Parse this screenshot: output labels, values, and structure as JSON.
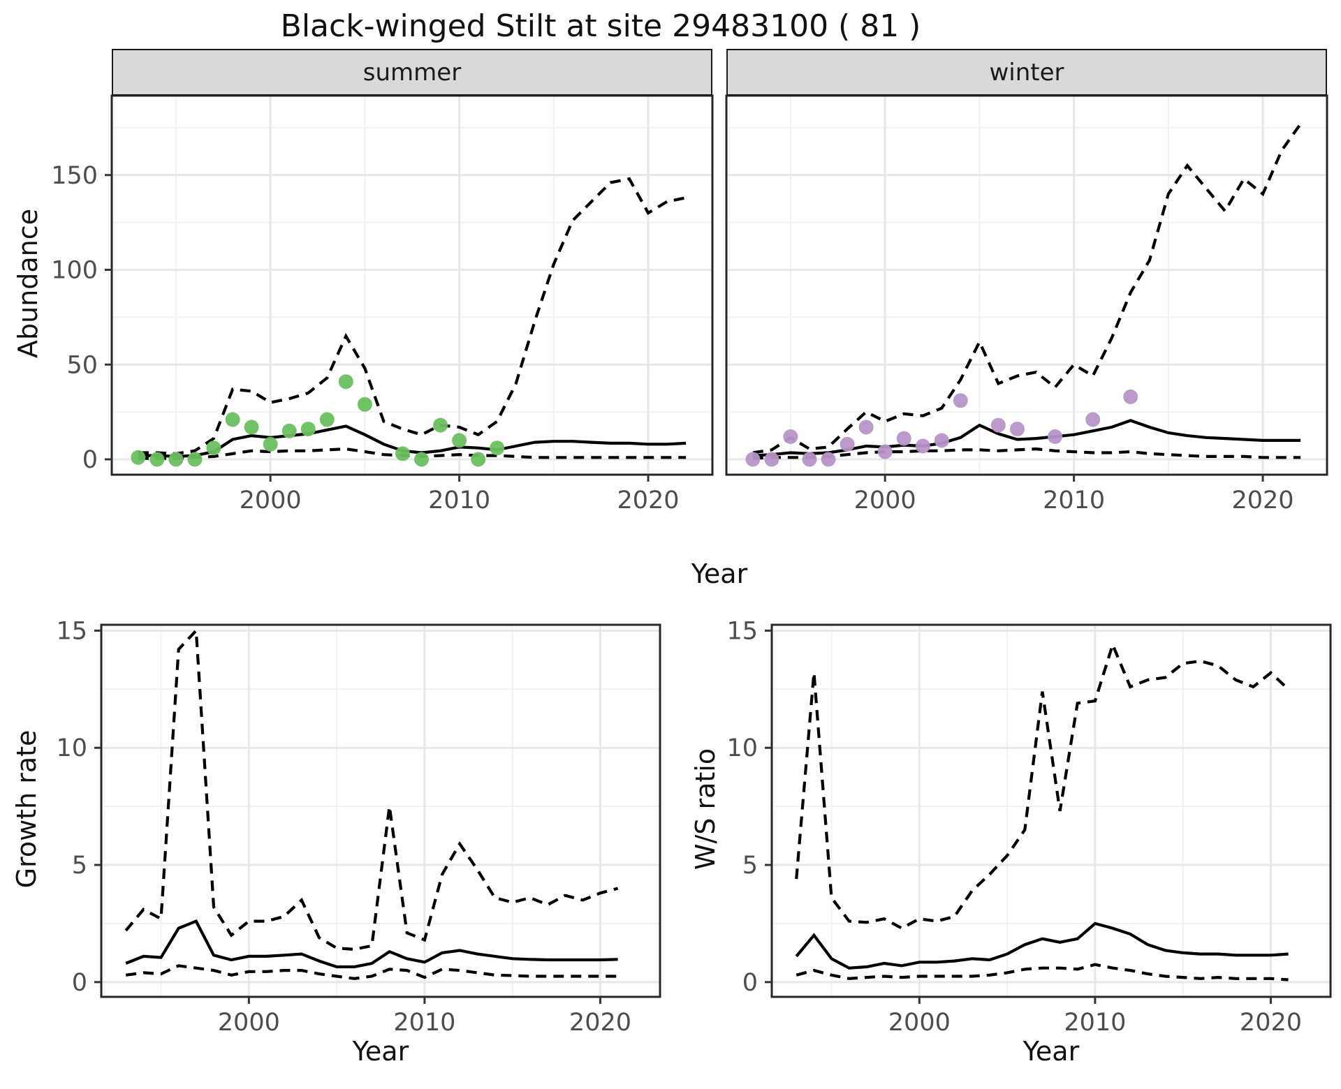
{
  "title": "Black-winged Stilt at site 29483100 ( 81 )",
  "facets": {
    "summer": "summer",
    "winter": "winter"
  },
  "axis_titles": {
    "abundance": "Abundance",
    "year_top": "Year",
    "growth": "Growth rate",
    "year_growth": "Year",
    "ws": "W/S ratio",
    "year_ws": "Year"
  },
  "colors": {
    "summer_points": "#6abf5f",
    "winter_points": "#b795c8",
    "line": "#000000",
    "strip_fill": "#d9d9d9",
    "panel_border": "#262626",
    "grid_major": "#e8e8e8",
    "grid_minor": "#f2f2f2",
    "tick_text": "#4d4d4d"
  },
  "chart_data": [
    {
      "id": "abundance-summer",
      "type": "line",
      "facet": "summer",
      "xlabel": "Year",
      "ylabel": "Abundance",
      "xlim": [
        1991.6,
        2023.4
      ],
      "ylim": [
        -8.1,
        191.9
      ],
      "xticks": [
        2000,
        2010,
        2020
      ],
      "xminor": [
        1995,
        2005,
        2015
      ],
      "yticks": [
        0,
        50,
        100,
        150
      ],
      "yminor": [
        25,
        75,
        125,
        175
      ],
      "years": [
        1993,
        1994,
        1995,
        1996,
        1997,
        1998,
        1999,
        2000,
        2001,
        2002,
        2003,
        2004,
        2005,
        2006,
        2007,
        2008,
        2009,
        2010,
        2011,
        2012,
        2013,
        2014,
        2015,
        2016,
        2017,
        2018,
        2019,
        2020,
        2021,
        2022
      ],
      "series": [
        {
          "name": "fit",
          "style": "solid",
          "values": [
            2,
            2,
            1.5,
            2,
            4,
            10.5,
            12.5,
            11.5,
            12.5,
            13.5,
            15.5,
            17.5,
            13,
            8,
            4.5,
            3.5,
            4.5,
            6.5,
            6,
            5,
            7,
            9,
            9.5,
            9.5,
            9,
            8.5,
            8.5,
            8,
            8,
            8.5
          ]
        },
        {
          "name": "ci-upper",
          "style": "dashed",
          "values": [
            3.5,
            3.5,
            3,
            4.5,
            11,
            37,
            36,
            30,
            32,
            35,
            43,
            65,
            48,
            20,
            16,
            13,
            18,
            17,
            13,
            20,
            40,
            73,
            103,
            126,
            136,
            146,
            148,
            130,
            136,
            138
          ]
        },
        {
          "name": "ci-lower",
          "style": "dashed",
          "values": [
            0.5,
            0.5,
            0.5,
            1,
            1.5,
            3,
            4.5,
            4,
            4.5,
            4.5,
            5,
            5.5,
            4,
            2.5,
            2,
            1.5,
            2,
            2.5,
            2,
            2,
            1.5,
            1,
            1,
            1,
            1,
            1,
            1,
            1,
            1,
            1
          ]
        }
      ],
      "observations": {
        "name": "summer-counts",
        "color": "#6abf5f",
        "points": [
          [
            1993,
            1
          ],
          [
            1994,
            0
          ],
          [
            1995,
            0
          ],
          [
            1996,
            0
          ],
          [
            1997,
            6
          ],
          [
            1998,
            21
          ],
          [
            1999,
            17
          ],
          [
            2000,
            8
          ],
          [
            2001,
            15
          ],
          [
            2002,
            16
          ],
          [
            2003,
            21
          ],
          [
            2004,
            41
          ],
          [
            2005,
            29
          ],
          [
            2007,
            3
          ],
          [
            2008,
            0
          ],
          [
            2009,
            18
          ],
          [
            2010,
            10
          ],
          [
            2011,
            0
          ],
          [
            2012,
            6
          ]
        ]
      }
    },
    {
      "id": "abundance-winter",
      "type": "line",
      "facet": "winter",
      "xlabel": "Year",
      "ylabel": "Abundance",
      "xlim": [
        1991.6,
        2023.4
      ],
      "ylim": [
        -8.1,
        191.9
      ],
      "xticks": [
        2000,
        2010,
        2020
      ],
      "xminor": [
        1995,
        2005,
        2015
      ],
      "yticks": [
        0,
        50,
        100,
        150
      ],
      "yminor": [
        25,
        75,
        125,
        175
      ],
      "years": [
        1993,
        1994,
        1995,
        1996,
        1997,
        1998,
        1999,
        2000,
        2001,
        2002,
        2003,
        2004,
        2005,
        2006,
        2007,
        2008,
        2009,
        2010,
        2011,
        2012,
        2013,
        2014,
        2015,
        2016,
        2017,
        2018,
        2019,
        2020,
        2021,
        2022
      ],
      "series": [
        {
          "name": "fit",
          "style": "solid",
          "values": [
            2,
            2.5,
            3.5,
            3,
            3.5,
            5,
            7,
            6.5,
            7.5,
            7,
            8.5,
            11.5,
            18,
            13.5,
            10.5,
            11,
            12,
            13,
            15,
            17,
            20.5,
            17,
            14,
            12.5,
            11.5,
            11,
            10.5,
            10,
            10,
            10
          ]
        },
        {
          "name": "ci-upper",
          "style": "dashed",
          "values": [
            3.5,
            5,
            11.5,
            5.5,
            6.5,
            16,
            25,
            20,
            24,
            23,
            27,
            42,
            62,
            40,
            44,
            46,
            38,
            50,
            44,
            64,
            88,
            105,
            140,
            155,
            143,
            131,
            148,
            140,
            163,
            177
          ]
        },
        {
          "name": "ci-lower",
          "style": "dashed",
          "values": [
            0.5,
            1,
            1,
            1,
            1.5,
            2.5,
            3.5,
            4,
            4,
            4.5,
            4.5,
            5,
            5,
            4.5,
            5,
            5.5,
            4.5,
            4,
            3.5,
            3.5,
            4,
            3,
            2.5,
            2,
            1.5,
            1.5,
            1.5,
            1,
            1,
            1
          ]
        }
      ],
      "observations": {
        "name": "winter-counts",
        "color": "#b795c8",
        "points": [
          [
            1993,
            0
          ],
          [
            1994,
            0
          ],
          [
            1995,
            12
          ],
          [
            1996,
            0
          ],
          [
            1997,
            0
          ],
          [
            1998,
            8
          ],
          [
            1999,
            17
          ],
          [
            2000,
            4
          ],
          [
            2001,
            11
          ],
          [
            2002,
            7
          ],
          [
            2003,
            10
          ],
          [
            2004,
            31
          ],
          [
            2006,
            18
          ],
          [
            2007,
            16
          ],
          [
            2009,
            12
          ],
          [
            2011,
            21
          ],
          [
            2013,
            33
          ]
        ]
      }
    },
    {
      "id": "growth-rate",
      "type": "line",
      "facet": null,
      "xlabel": "Year",
      "ylabel": "Growth rate",
      "xlim": [
        1991.6,
        2023.4
      ],
      "ylim": [
        -0.63,
        15.25
      ],
      "xticks": [
        2000,
        2010,
        2020
      ],
      "xminor": [
        1995,
        2005,
        2015
      ],
      "yticks": [
        0,
        5,
        10,
        15
      ],
      "yminor": [
        2.5,
        7.5,
        12.5
      ],
      "years": [
        1993,
        1994,
        1995,
        1996,
        1997,
        1998,
        1999,
        2000,
        2001,
        2002,
        2003,
        2004,
        2005,
        2006,
        2007,
        2008,
        2009,
        2010,
        2011,
        2012,
        2013,
        2014,
        2015,
        2016,
        2017,
        2018,
        2019,
        2020,
        2021
      ],
      "series": [
        {
          "name": "fit",
          "style": "solid",
          "values": [
            0.8,
            1.1,
            1.05,
            2.3,
            2.6,
            1.15,
            0.95,
            1.1,
            1.1,
            1.15,
            1.2,
            0.9,
            0.65,
            0.65,
            0.8,
            1.3,
            1.0,
            0.85,
            1.25,
            1.35,
            1.2,
            1.1,
            1.0,
            0.97,
            0.95,
            0.95,
            0.95,
            0.95,
            0.97
          ]
        },
        {
          "name": "ci-upper",
          "style": "dashed",
          "values": [
            2.2,
            3.1,
            2.7,
            14.2,
            15.0,
            3.2,
            2.0,
            2.6,
            2.6,
            2.8,
            3.5,
            1.9,
            1.45,
            1.4,
            1.55,
            7.5,
            2.1,
            1.8,
            4.6,
            5.9,
            4.8,
            3.6,
            3.4,
            3.6,
            3.3,
            3.7,
            3.5,
            3.8,
            4.0
          ]
        },
        {
          "name": "ci-lower",
          "style": "dashed",
          "values": [
            0.3,
            0.4,
            0.35,
            0.7,
            0.6,
            0.5,
            0.3,
            0.45,
            0.45,
            0.5,
            0.5,
            0.35,
            0.25,
            0.15,
            0.25,
            0.55,
            0.5,
            0.2,
            0.55,
            0.5,
            0.4,
            0.3,
            0.28,
            0.25,
            0.25,
            0.25,
            0.25,
            0.25,
            0.25
          ]
        }
      ],
      "observations": null
    },
    {
      "id": "ws-ratio",
      "type": "line",
      "facet": null,
      "xlabel": "Year",
      "ylabel": "W/S ratio",
      "xlim": [
        1991.6,
        2023.4
      ],
      "ylim": [
        -0.63,
        15.25
      ],
      "xticks": [
        2000,
        2010,
        2020
      ],
      "xminor": [
        1995,
        2005,
        2015
      ],
      "yticks": [
        0,
        5,
        10,
        15
      ],
      "yminor": [
        2.5,
        7.5,
        12.5
      ],
      "years": [
        1993,
        1994,
        1995,
        1996,
        1997,
        1998,
        1999,
        2000,
        2001,
        2002,
        2003,
        2004,
        2005,
        2006,
        2007,
        2008,
        2009,
        2010,
        2011,
        2012,
        2013,
        2014,
        2015,
        2016,
        2017,
        2018,
        2019,
        2020,
        2021
      ],
      "series": [
        {
          "name": "fit",
          "style": "solid",
          "values": [
            1.1,
            2.0,
            1.0,
            0.6,
            0.65,
            0.8,
            0.7,
            0.85,
            0.85,
            0.9,
            1.0,
            0.95,
            1.2,
            1.6,
            1.85,
            1.7,
            1.85,
            2.5,
            2.3,
            2.05,
            1.6,
            1.35,
            1.25,
            1.2,
            1.2,
            1.15,
            1.15,
            1.15,
            1.2
          ]
        },
        {
          "name": "ci-upper",
          "style": "dashed",
          "values": [
            4.4,
            13.2,
            3.6,
            2.6,
            2.55,
            2.7,
            2.3,
            2.7,
            2.6,
            2.8,
            3.9,
            4.6,
            5.4,
            6.5,
            12.4,
            7.3,
            11.9,
            12.0,
            14.4,
            12.6,
            12.9,
            13.0,
            13.6,
            13.7,
            13.5,
            12.9,
            12.6,
            13.2,
            12.5
          ]
        },
        {
          "name": "ci-lower",
          "style": "dashed",
          "values": [
            0.3,
            0.5,
            0.3,
            0.15,
            0.2,
            0.25,
            0.2,
            0.25,
            0.25,
            0.25,
            0.25,
            0.3,
            0.4,
            0.55,
            0.6,
            0.6,
            0.55,
            0.75,
            0.6,
            0.5,
            0.35,
            0.25,
            0.2,
            0.15,
            0.2,
            0.15,
            0.15,
            0.15,
            0.1
          ]
        }
      ],
      "observations": null
    }
  ]
}
